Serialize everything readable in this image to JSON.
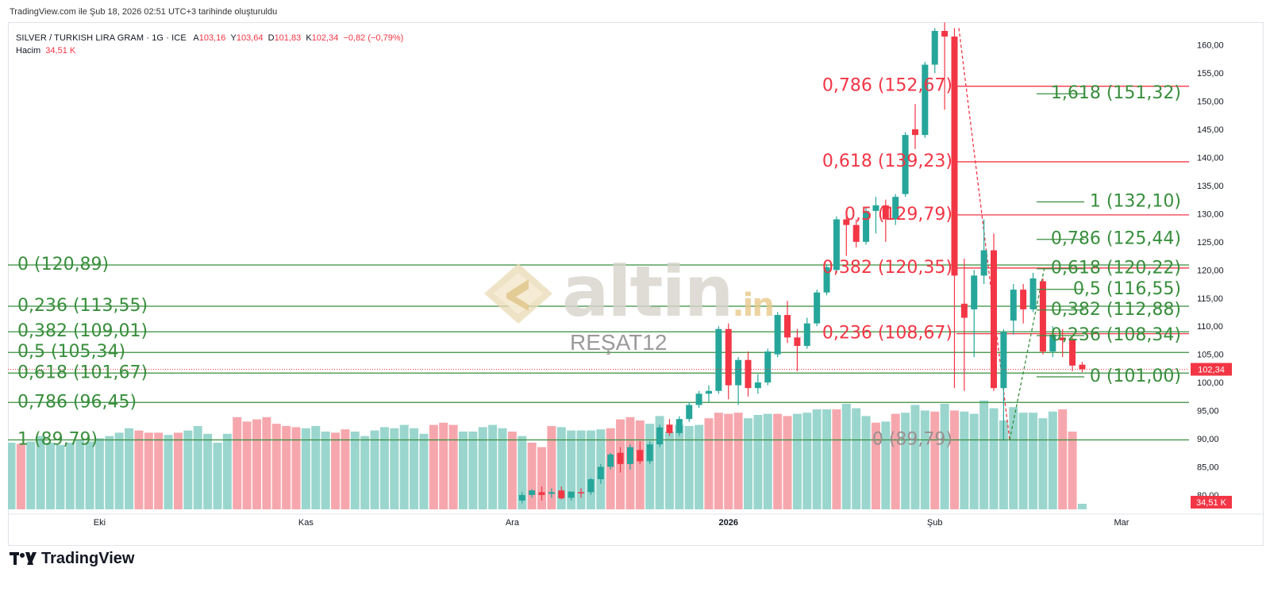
{
  "header": {
    "created_note": "TradingView.com ile Şub 18, 2026 02:51 UTC+3 tarihinde oluşturuldu"
  },
  "legend": {
    "symbol": "SILVER / TURKISH LIRA GRAM · 1G · ICE",
    "open_label": "A",
    "open": "103,16",
    "high_label": "Y",
    "high": "103,64",
    "low_label": "D",
    "low": "101,83",
    "close_label": "K",
    "close": "102,34",
    "change": "−0,82 (−0,79%)",
    "volume_label": "Hacim",
    "volume": "34,51 K"
  },
  "watermark": {
    "brand": "altin",
    "suffix": ".in",
    "author": "REŞAT12"
  },
  "footer": {
    "brand": "TradingView"
  },
  "colors": {
    "up": "#26a69a",
    "down": "#f23645",
    "fib_green": "#388e3c",
    "fib_red": "#f23645",
    "vol_up": "#9ad6ce",
    "vol_down": "#f6a7ad"
  },
  "chart_data": {
    "type": "candlestick",
    "y_axis": {
      "min": 78,
      "max": 163,
      "ticks": [
        160,
        155,
        150,
        145,
        140,
        135,
        130,
        125,
        120,
        115,
        110,
        105,
        100,
        95,
        90,
        85,
        80
      ],
      "tick_labels": [
        "160,00",
        "155,00",
        "150,00",
        "145,00",
        "140,00",
        "135,00",
        "130,00",
        "125,00",
        "120,00",
        "115,00",
        "110,00",
        "105,00",
        "100,00",
        "95,00",
        "90,00",
        "85,00",
        "80,00"
      ],
      "last_price_label": "102,34",
      "volume_label": "34,51 K"
    },
    "x_axis": {
      "labels": [
        {
          "text": "Eki",
          "bar": 9,
          "bold": false
        },
        {
          "text": "Kas",
          "bar": 30,
          "bold": false
        },
        {
          "text": "Ara",
          "bar": 51,
          "bold": false
        },
        {
          "text": "2026",
          "bar": 73,
          "bold": true
        },
        {
          "text": "Şub",
          "bar": 94,
          "bold": false
        },
        {
          "text": "Mar",
          "bar": 113,
          "bold": false
        }
      ]
    },
    "candles": [
      {
        "bar": 52,
        "o": 79.0,
        "h": 80.5,
        "l": 78.5,
        "c": 80.0
      },
      {
        "bar": 53,
        "o": 80.0,
        "h": 81.0,
        "l": 79.5,
        "c": 80.8
      },
      {
        "bar": 54,
        "o": 80.5,
        "h": 81.5,
        "l": 79.0,
        "c": 80.0
      },
      {
        "bar": 55,
        "o": 80.2,
        "h": 81.2,
        "l": 79.5,
        "c": 80.5
      },
      {
        "bar": 56,
        "o": 80.8,
        "h": 81.5,
        "l": 79.2,
        "c": 79.4
      },
      {
        "bar": 57,
        "o": 79.5,
        "h": 80.5,
        "l": 79.0,
        "c": 80.6
      },
      {
        "bar": 58,
        "o": 80.5,
        "h": 81.2,
        "l": 79.5,
        "c": 80.4
      },
      {
        "bar": 59,
        "o": 80.5,
        "h": 83.0,
        "l": 80.0,
        "c": 82.8
      },
      {
        "bar": 60,
        "o": 82.8,
        "h": 85.5,
        "l": 82.0,
        "c": 85.0
      },
      {
        "bar": 61,
        "o": 85.0,
        "h": 87.5,
        "l": 84.5,
        "c": 87.2
      },
      {
        "bar": 62,
        "o": 87.5,
        "h": 88.5,
        "l": 84.0,
        "c": 85.5
      },
      {
        "bar": 63,
        "o": 85.5,
        "h": 89.0,
        "l": 84.5,
        "c": 88.5
      },
      {
        "bar": 64,
        "o": 88.0,
        "h": 89.5,
        "l": 85.5,
        "c": 86.0
      },
      {
        "bar": 65,
        "o": 86.0,
        "h": 89.5,
        "l": 85.5,
        "c": 89.0
      },
      {
        "bar": 66,
        "o": 89.0,
        "h": 92.5,
        "l": 88.5,
        "c": 92.0
      },
      {
        "bar": 67,
        "o": 92.5,
        "h": 93.5,
        "l": 90.5,
        "c": 91.0
      },
      {
        "bar": 68,
        "o": 91.0,
        "h": 94.0,
        "l": 90.5,
        "c": 93.5
      },
      {
        "bar": 69,
        "o": 93.5,
        "h": 96.5,
        "l": 93.0,
        "c": 96.0
      },
      {
        "bar": 70,
        "o": 96.0,
        "h": 98.5,
        "l": 95.5,
        "c": 98.0
      },
      {
        "bar": 71,
        "o": 98.0,
        "h": 99.5,
        "l": 96.5,
        "c": 98.5
      },
      {
        "bar": 72,
        "o": 98.5,
        "h": 110.0,
        "l": 98.0,
        "c": 109.5
      },
      {
        "bar": 73,
        "o": 109.5,
        "h": 110.5,
        "l": 97.0,
        "c": 99.5
      },
      {
        "bar": 74,
        "o": 99.5,
        "h": 104.5,
        "l": 96.0,
        "c": 104.0
      },
      {
        "bar": 75,
        "o": 104.0,
        "h": 105.5,
        "l": 97.5,
        "c": 99.0
      },
      {
        "bar": 76,
        "o": 99.0,
        "h": 101.5,
        "l": 98.0,
        "c": 100.0
      },
      {
        "bar": 77,
        "o": 100.0,
        "h": 106.0,
        "l": 99.5,
        "c": 105.5
      },
      {
        "bar": 78,
        "o": 105.0,
        "h": 112.5,
        "l": 104.5,
        "c": 112.0
      },
      {
        "bar": 79,
        "o": 112.0,
        "h": 114.5,
        "l": 107.0,
        "c": 108.0
      },
      {
        "bar": 80,
        "o": 108.0,
        "h": 109.5,
        "l": 102.0,
        "c": 106.5
      },
      {
        "bar": 81,
        "o": 106.5,
        "h": 111.5,
        "l": 106.0,
        "c": 110.5
      },
      {
        "bar": 82,
        "o": 110.5,
        "h": 116.5,
        "l": 110.0,
        "c": 116.0
      },
      {
        "bar": 83,
        "o": 116.0,
        "h": 121.0,
        "l": 115.5,
        "c": 120.5
      },
      {
        "bar": 84,
        "o": 120.0,
        "h": 129.5,
        "l": 119.5,
        "c": 129.0
      },
      {
        "bar": 85,
        "o": 129.0,
        "h": 130.0,
        "l": 122.5,
        "c": 128.0
      },
      {
        "bar": 86,
        "o": 128.0,
        "h": 129.0,
        "l": 124.0,
        "c": 125.0
      },
      {
        "bar": 87,
        "o": 125.0,
        "h": 131.0,
        "l": 124.5,
        "c": 130.5
      },
      {
        "bar": 88,
        "o": 130.5,
        "h": 133.0,
        "l": 126.5,
        "c": 131.5
      },
      {
        "bar": 89,
        "o": 131.5,
        "h": 132.5,
        "l": 125.0,
        "c": 129.0
      },
      {
        "bar": 90,
        "o": 129.0,
        "h": 133.5,
        "l": 128.0,
        "c": 133.0
      },
      {
        "bar": 91,
        "o": 133.5,
        "h": 144.5,
        "l": 133.0,
        "c": 144.0
      },
      {
        "bar": 92,
        "o": 145.0,
        "h": 149.5,
        "l": 141.5,
        "c": 144.0
      },
      {
        "bar": 93,
        "o": 144.0,
        "h": 157.0,
        "l": 143.5,
        "c": 156.5
      },
      {
        "bar": 94,
        "o": 156.5,
        "h": 163.0,
        "l": 155.0,
        "c": 162.5
      },
      {
        "bar": 95,
        "o": 162.5,
        "h": 164.0,
        "l": 148.5,
        "c": 161.5
      },
      {
        "bar": 96,
        "o": 161.5,
        "h": 163.0,
        "l": 99.0,
        "c": 119.0
      },
      {
        "bar": 97,
        "o": 114.0,
        "h": 122.0,
        "l": 98.5,
        "c": 111.5
      },
      {
        "bar": 98,
        "o": 113.0,
        "h": 120.0,
        "l": 104.5,
        "c": 119.0
      },
      {
        "bar": 99,
        "o": 119.0,
        "h": 129.0,
        "l": 117.5,
        "c": 123.5
      },
      {
        "bar": 100,
        "o": 123.5,
        "h": 126.5,
        "l": 98.5,
        "c": 99.0
      },
      {
        "bar": 101,
        "o": 99.0,
        "h": 109.5,
        "l": 89.8,
        "c": 109.0
      },
      {
        "bar": 102,
        "o": 111.0,
        "h": 117.5,
        "l": 108.5,
        "c": 116.5
      },
      {
        "bar": 103,
        "o": 116.5,
        "h": 117.5,
        "l": 110.5,
        "c": 113.0
      },
      {
        "bar": 104,
        "o": 113.0,
        "h": 119.5,
        "l": 112.5,
        "c": 118.5
      },
      {
        "bar": 105,
        "o": 118.0,
        "h": 118.5,
        "l": 105.0,
        "c": 105.5
      },
      {
        "bar": 106,
        "o": 105.5,
        "h": 110.0,
        "l": 104.5,
        "c": 108.5
      },
      {
        "bar": 107,
        "o": 108.0,
        "h": 109.5,
        "l": 104.5,
        "c": 107.5
      },
      {
        "bar": 108,
        "o": 107.5,
        "h": 108.0,
        "l": 102.0,
        "c": 103.0
      },
      {
        "bar": 109,
        "o": 103.16,
        "h": 103.64,
        "l": 101.83,
        "c": 102.34
      }
    ],
    "volume": {
      "values": [
        60,
        59,
        61,
        66,
        60,
        58,
        60,
        62,
        61,
        64,
        66,
        69,
        73,
        71,
        69,
        69,
        67,
        69,
        71,
        75,
        68,
        60,
        68,
        83,
        79,
        81,
        83,
        77,
        75,
        74,
        73,
        75,
        70,
        69,
        72,
        70,
        66,
        71,
        74,
        73,
        76,
        73,
        68,
        76,
        78,
        76,
        70,
        70,
        74,
        76,
        73,
        70,
        66,
        60,
        56,
        75,
        74,
        71,
        71,
        71,
        72,
        73,
        81,
        83,
        80,
        77,
        84,
        70,
        76,
        75,
        76,
        82,
        87,
        86,
        87,
        82,
        85,
        86,
        86,
        84,
        86,
        87,
        90,
        90,
        90,
        95,
        91,
        84,
        78,
        79,
        86,
        87,
        94,
        89,
        88,
        95,
        89,
        88,
        86,
        98,
        91,
        80,
        92,
        87,
        87,
        82,
        88,
        90,
        70,
        5
      ],
      "colors": [
        "up",
        "down",
        "up",
        "up",
        "up",
        "up",
        "up",
        "up",
        "up",
        "up",
        "up",
        "up",
        "up",
        "down",
        "down",
        "down",
        "up",
        "down",
        "up",
        "up",
        "up",
        "up",
        "up",
        "down",
        "down",
        "down",
        "down",
        "down",
        "down",
        "down",
        "up",
        "up",
        "up",
        "down",
        "down",
        "up",
        "up",
        "up",
        "up",
        "up",
        "up",
        "up",
        "up",
        "down",
        "down",
        "down",
        "up",
        "up",
        "up",
        "up",
        "up",
        "down",
        "up",
        "down",
        "down",
        "down",
        "up",
        "up",
        "up",
        "up",
        "up",
        "down",
        "down",
        "down",
        "down",
        "up",
        "up",
        "up",
        "up",
        "up",
        "up",
        "down",
        "down",
        "down",
        "down",
        "up",
        "up",
        "up",
        "down",
        "down",
        "up",
        "up",
        "up",
        "up",
        "down",
        "up",
        "up",
        "up",
        "down",
        "up",
        "down",
        "up",
        "up",
        "up",
        "down",
        "up",
        "down",
        "up",
        "up",
        "up",
        "up",
        "up",
        "up",
        "up",
        "up",
        "up",
        "up",
        "down",
        "down",
        "up"
      ],
      "max": 100
    },
    "fib_green_left": [
      {
        "label": "0 (120,89)",
        "value": 120.89
      },
      {
        "label": "0,236 (113,55)",
        "value": 113.55
      },
      {
        "label": "0,382 (109,01)",
        "value": 109.01
      },
      {
        "label": "0,5 (105,34)",
        "value": 105.34
      },
      {
        "label": "0,618 (101,67)",
        "value": 101.67
      },
      {
        "label": "0,786 (96,45)",
        "value": 96.45
      },
      {
        "label": "1 (89,79)",
        "value": 89.79
      }
    ],
    "fib_red": [
      {
        "label": "0,786 (152,67)",
        "value": 152.67
      },
      {
        "label": "0,618 (139,23)",
        "value": 139.23
      },
      {
        "label": "0,5 (129,79)",
        "value": 129.79
      },
      {
        "label": "0,382 (120,35)",
        "value": 120.35
      },
      {
        "label": "0,236 (108,67)",
        "value": 108.67
      },
      {
        "label": "0 (89,79)",
        "value": 89.79
      }
    ],
    "fib_green_right": [
      {
        "label": "1,618 (151,32)",
        "value": 151.32
      },
      {
        "label": "1 (132,10)",
        "value": 132.1
      },
      {
        "label": "0,786 (125,44)",
        "value": 125.44
      },
      {
        "label": "0,618 (120,22)",
        "value": 120.22
      },
      {
        "label": "0,5 (116,55)",
        "value": 116.55
      },
      {
        "label": "0,382 (112,88)",
        "value": 112.88
      },
      {
        "label": "0,236 (108,34)",
        "value": 108.34
      },
      {
        "label": "0 (101,00)",
        "value": 101.0
      }
    ]
  }
}
